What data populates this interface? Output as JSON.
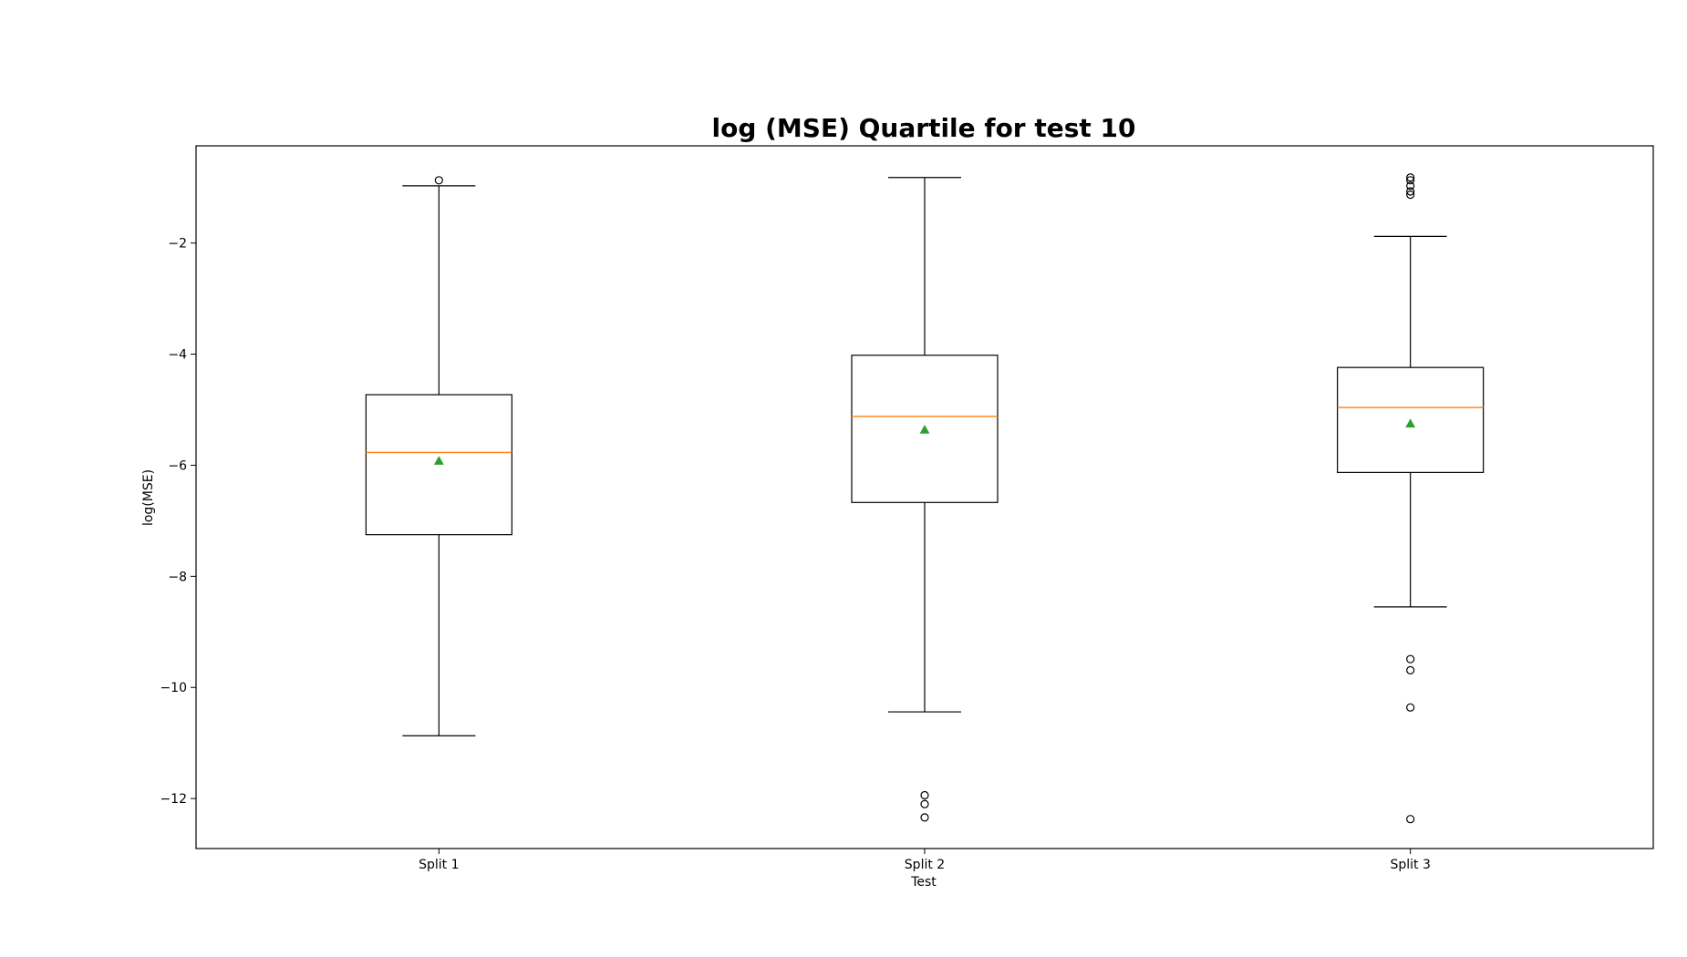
{
  "chart_data": {
    "type": "box",
    "title": "log (MSE) Quartile for test 10",
    "xlabel": "Test",
    "ylabel": "log(MSE)",
    "ylim": [
      -12.9,
      -0.25
    ],
    "yticks": [
      -2,
      -4,
      -6,
      -8,
      -10,
      -12
    ],
    "ytick_labels": [
      "−2",
      "−4",
      "−6",
      "−8",
      "−10",
      "−12"
    ],
    "categories": [
      "Split 1",
      "Split 2",
      "Split 3"
    ],
    "grid": false,
    "legend": "none",
    "colors": {
      "box": "#000000",
      "median": "#ff7f0e",
      "mean": "#2ca02c",
      "flier": "#000000"
    },
    "boxes": [
      {
        "name": "Split 1",
        "whisker_low": -10.87,
        "q1": -7.25,
        "median": -5.77,
        "q3": -4.73,
        "whisker_high": -0.97,
        "mean": -5.92,
        "outliers": [
          -0.87
        ]
      },
      {
        "name": "Split 2",
        "whisker_low": -10.44,
        "q1": -6.67,
        "median": -5.12,
        "q3": -4.02,
        "whisker_high": -0.82,
        "mean": -5.36,
        "outliers": [
          -11.94,
          -12.1,
          -12.34
        ]
      },
      {
        "name": "Split 3",
        "whisker_low": -8.55,
        "q1": -6.13,
        "median": -4.96,
        "q3": -4.24,
        "whisker_high": -1.88,
        "mean": -5.25,
        "outliers": [
          -0.82,
          -0.87,
          -0.97,
          -1.07,
          -1.13,
          -9.49,
          -9.69,
          -10.36,
          -12.37
        ]
      }
    ]
  }
}
